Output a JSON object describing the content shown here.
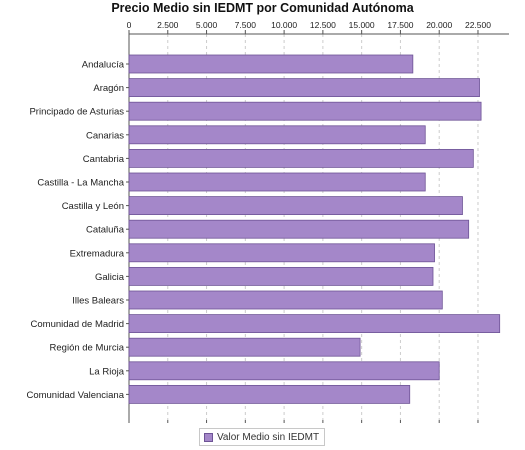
{
  "colors": {
    "bar_fill": "#a487c9",
    "bar_stroke": "#6e5496",
    "grid": "#cccccc",
    "axis": "#555555"
  },
  "chart_data": {
    "type": "bar",
    "orientation": "horizontal",
    "title": "Precio Medio sin IEDMT por Comunidad Autónoma",
    "xlabel": "",
    "ylabel": "",
    "xlim": [
      0,
      24500
    ],
    "x_ticks": [
      0,
      2500,
      5000,
      7500,
      10000,
      12500,
      15000,
      17500,
      20000,
      22500
    ],
    "x_tick_labels": [
      "0",
      "2.500",
      "5.000",
      "7.500",
      "10.000",
      "12.500",
      "15.000",
      "17.500",
      "20.000",
      "22.500"
    ],
    "x_axis_position": "top",
    "grid": true,
    "legend_position": "bottom-center",
    "categories": [
      "Andalucía",
      "Aragón",
      "Principado de Asturias",
      "Canarias",
      "Cantabria",
      "Castilla - La Mancha",
      "Castilla y León",
      "Cataluña",
      "Extremadura",
      "Galicia",
      "Illes Balears",
      "Comunidad de Madrid",
      "Región de Murcia",
      "La Rioja",
      "Comunidad Valenciana"
    ],
    "series": [
      {
        "name": "Valor Medio sin IEDMT",
        "values": [
          18300,
          22600,
          22700,
          19100,
          22200,
          19100,
          21500,
          21900,
          19700,
          19600,
          20200,
          23900,
          14900,
          20000,
          18100
        ]
      }
    ]
  }
}
